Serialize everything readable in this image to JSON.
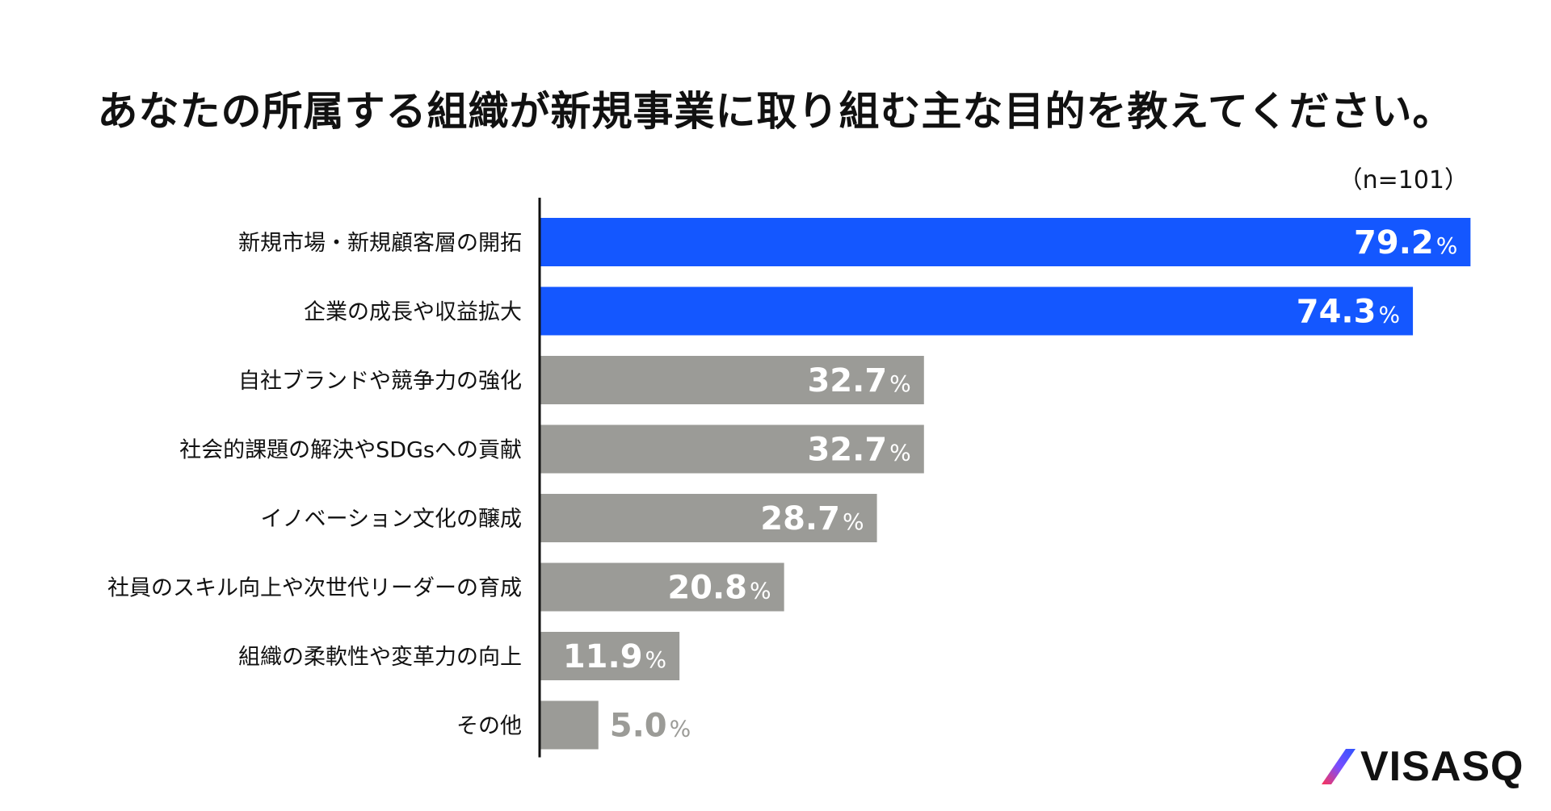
{
  "title": "あなたの所属する組織が新規事業に取り組む主な目的を教えてください。",
  "sample_size": "（n=101）",
  "brand": {
    "name": "VISASQ",
    "logo_icon": "slash-mark-icon",
    "colors": [
      "#ff3355",
      "#7a4dff",
      "#2f54ff"
    ]
  },
  "colors": {
    "highlight": "#1457ff",
    "normal": "#9b9b97",
    "axis": "#111111",
    "label_inside": "#ffffff",
    "label_outside": "#9b9b97"
  },
  "chart_data": {
    "type": "bar",
    "orientation": "horizontal",
    "categories": [
      "新規市場・新規顧客層の開拓",
      "企業の成長や収益拡大",
      "自社ブランドや競争力の強化",
      "社会的課題の解決やSDGsへの貢献",
      "イノベーション文化の醸成",
      "社員のスキル向上や次世代リーダーの育成",
      "組織の柔軟性や変革力の向上",
      "その他"
    ],
    "values": [
      79.2,
      74.3,
      32.7,
      32.7,
      28.7,
      20.8,
      11.9,
      5.0
    ],
    "value_labels": [
      "79.2",
      "74.3",
      "32.7",
      "32.7",
      "28.7",
      "20.8",
      "11.9",
      "5.0"
    ],
    "unit": "%",
    "highlighted": [
      true,
      true,
      false,
      false,
      false,
      false,
      false,
      false
    ],
    "xlim": [
      0,
      80
    ],
    "grid": false,
    "legend": "none"
  }
}
